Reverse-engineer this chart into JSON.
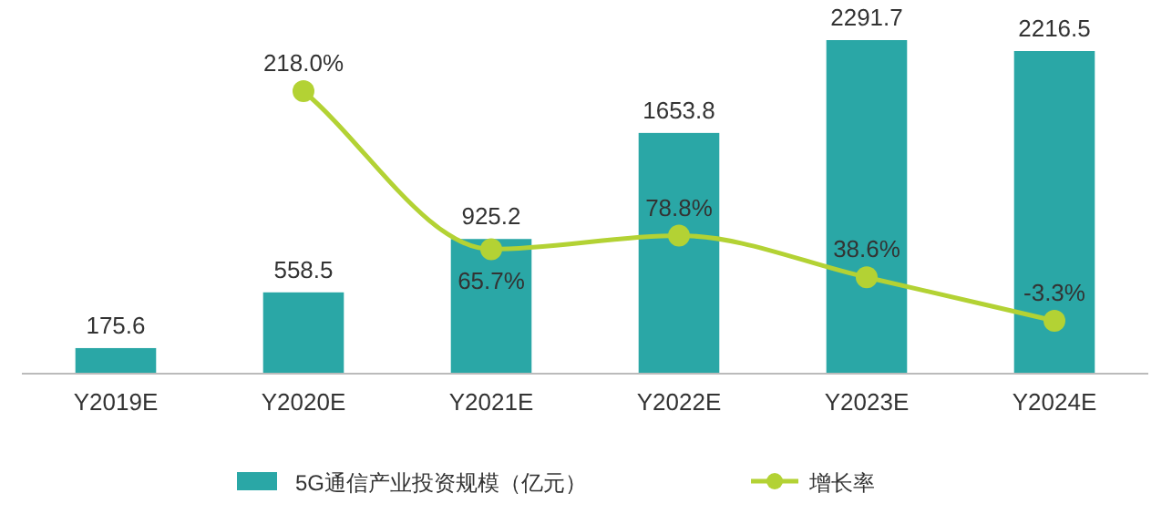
{
  "chart_data": {
    "type": "bar",
    "categories": [
      "Y2019E",
      "Y2020E",
      "Y2021E",
      "Y2022E",
      "Y2023E",
      "Y2024E"
    ],
    "series": [
      {
        "name": "5G通信产业投资规模（亿元）",
        "color": "#2aa7a6",
        "values": [
          175.6,
          558.5,
          925.2,
          1653.8,
          2291.7,
          2216.5
        ]
      },
      {
        "name": "增长率",
        "type": "line",
        "axis": "y2",
        "color": "#b3d234",
        "values": [
          null,
          218.0,
          65.7,
          78.8,
          38.6,
          -3.3
        ],
        "value_labels": [
          null,
          "218.0%",
          "65.7%",
          "78.8%",
          "38.6%",
          "-3.3%"
        ]
      }
    ],
    "data_labels": true,
    "marker": "circle",
    "line_style": "solid",
    "legend": "bottom",
    "tick_labels": "x"
  }
}
